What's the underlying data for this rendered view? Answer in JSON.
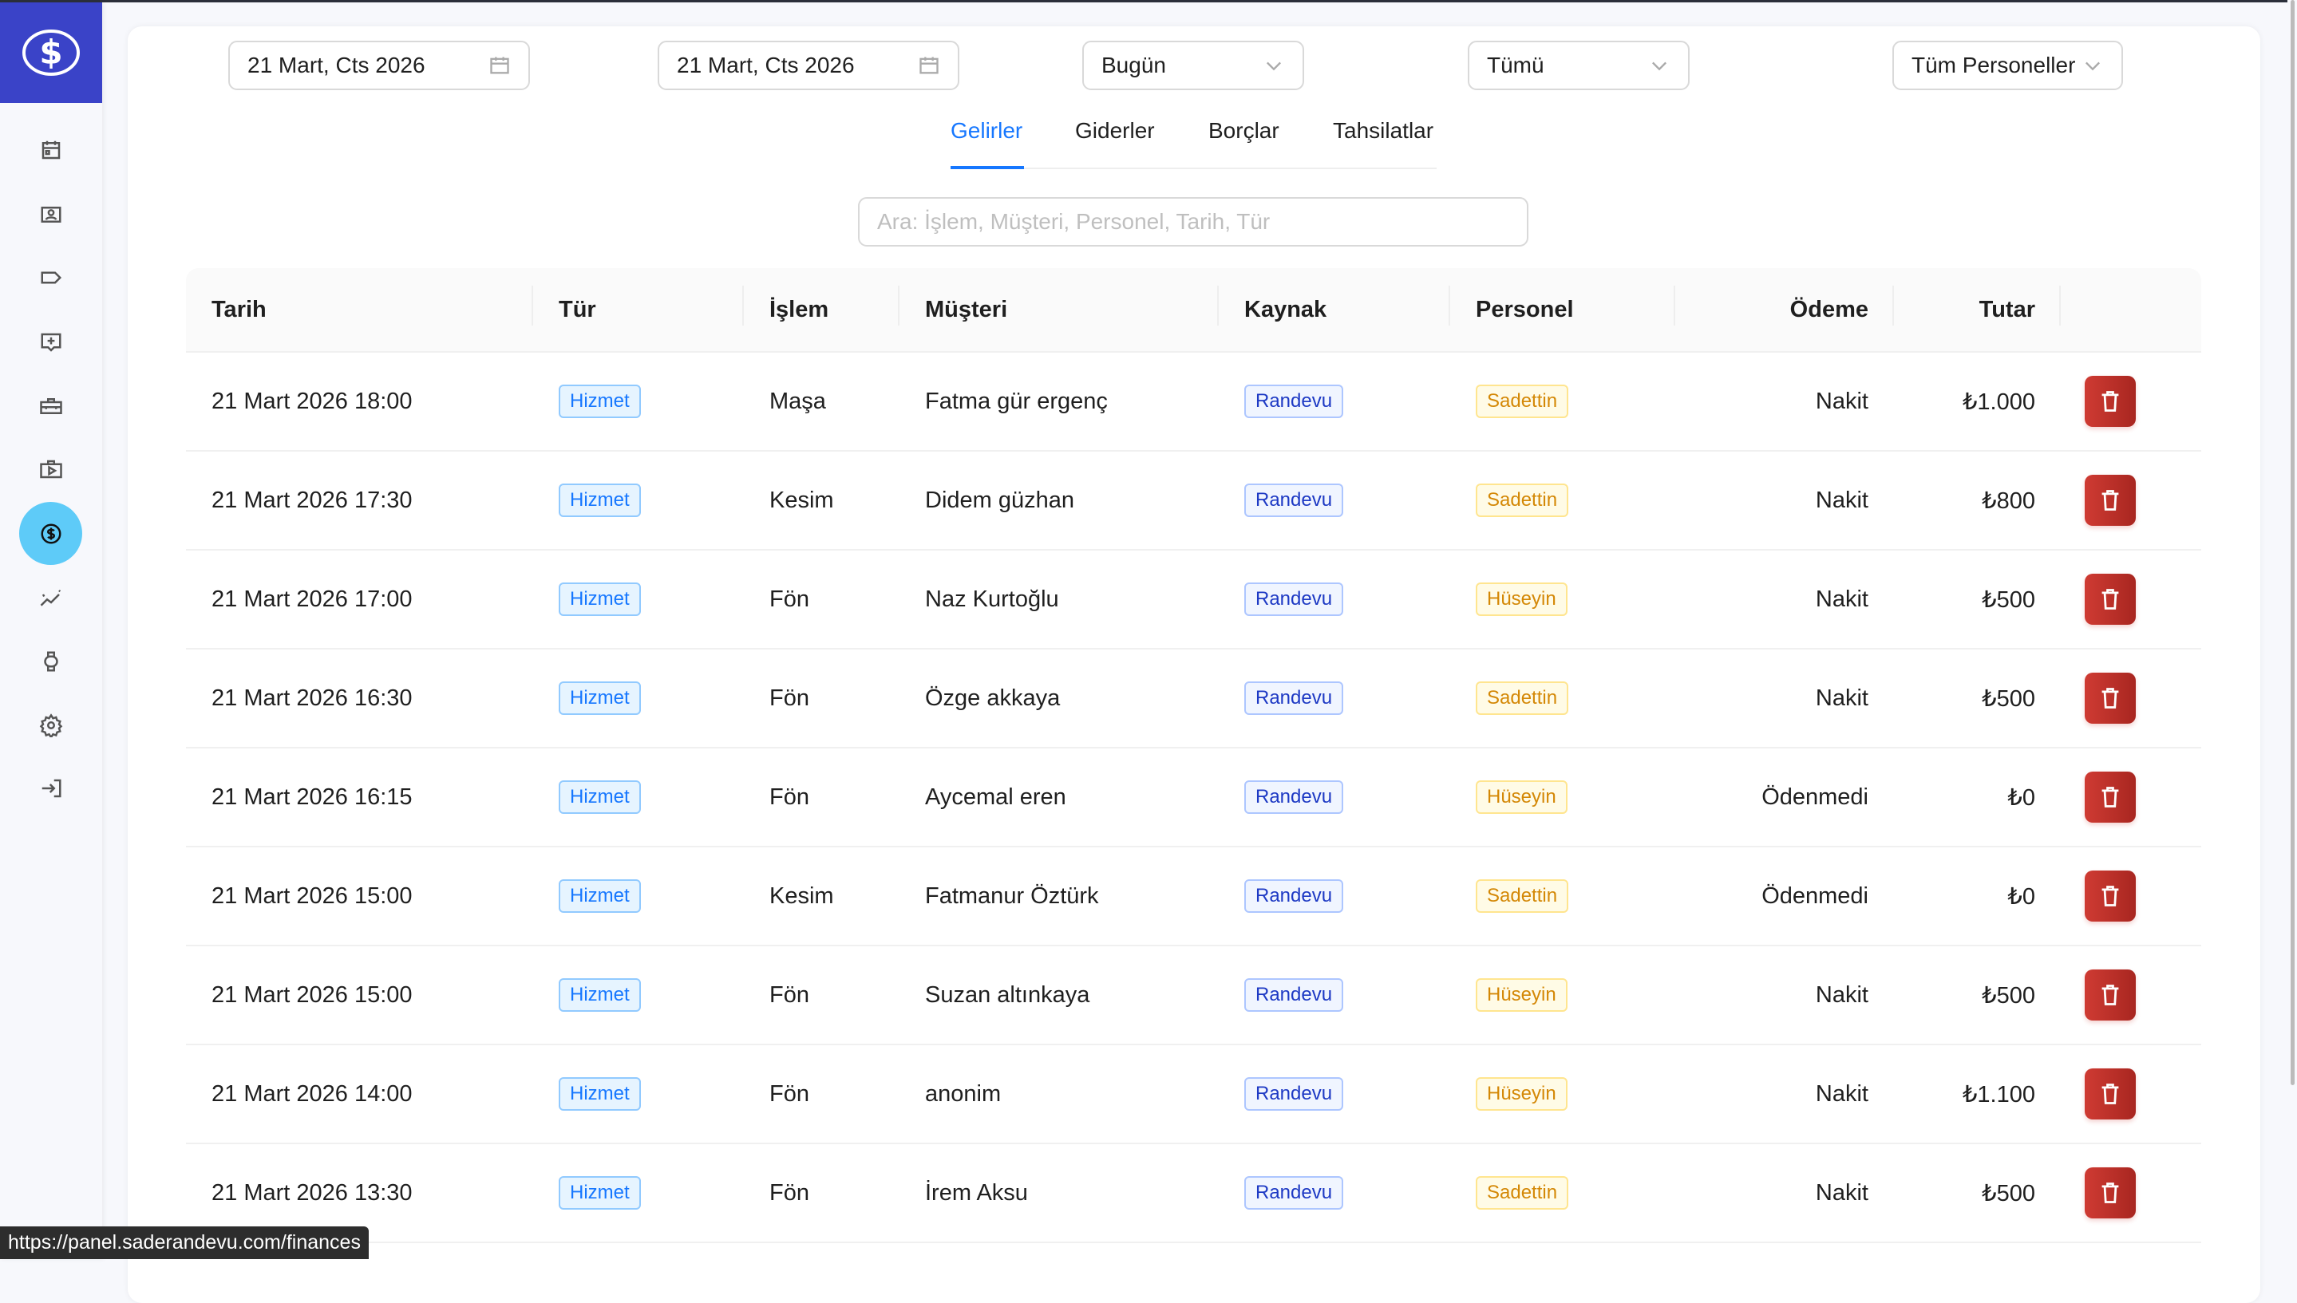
{
  "filters": {
    "start_date": "21 Mart, Cts 2026",
    "end_date": "21 Mart, Cts 2026",
    "period": "Bugün",
    "type": "Tümü",
    "staff": "Tüm Personeller"
  },
  "tabs": [
    "Gelirler",
    "Giderler",
    "Borçlar",
    "Tahsilatlar"
  ],
  "active_tab": "Gelirler",
  "search": {
    "placeholder": "Ara: İşlem, Müşteri, Personel, Tarih, Tür",
    "value": ""
  },
  "table": {
    "headers": [
      "Tarih",
      "Tür",
      "İşlem",
      "Müşteri",
      "Kaynak",
      "Personel",
      "Ödeme",
      "Tutar"
    ],
    "rows": [
      [
        "21 Mart 2026 18:00",
        "Hizmet",
        "Maşa",
        "Fatma gür ergenç",
        "Randevu",
        "Sadettin",
        "Nakit",
        "₺1.000"
      ],
      [
        "21 Mart 2026 17:30",
        "Hizmet",
        "Kesim",
        "Didem güzhan",
        "Randevu",
        "Sadettin",
        "Nakit",
        "₺800"
      ],
      [
        "21 Mart 2026 17:00",
        "Hizmet",
        "Fön",
        "Naz Kurtoğlu",
        "Randevu",
        "Hüseyin",
        "Nakit",
        "₺500"
      ],
      [
        "21 Mart 2026 16:30",
        "Hizmet",
        "Fön",
        "Özge akkaya",
        "Randevu",
        "Sadettin",
        "Nakit",
        "₺500"
      ],
      [
        "21 Mart 2026 16:15",
        "Hizmet",
        "Fön",
        "Aycemal eren",
        "Randevu",
        "Hüseyin",
        "Ödenmedi",
        "₺0"
      ],
      [
        "21 Mart 2026 15:00",
        "Hizmet",
        "Kesim",
        "Fatmanur Öztürk",
        "Randevu",
        "Sadettin",
        "Ödenmedi",
        "₺0"
      ],
      [
        "21 Mart 2026 15:00",
        "Hizmet",
        "Fön",
        "Suzan altınkaya",
        "Randevu",
        "Hüseyin",
        "Nakit",
        "₺500"
      ],
      [
        "21 Mart 2026 14:00",
        "Hizmet",
        "Fön",
        "anonim",
        "Randevu",
        "Hüseyin",
        "Nakit",
        "₺1.100"
      ],
      [
        "21 Mart 2026 13:30",
        "Hizmet",
        "Fön",
        "İrem Aksu",
        "Randevu",
        "Sadettin",
        "Nakit",
        "₺500"
      ]
    ]
  },
  "sidebar": {
    "items": [
      "calendar-icon",
      "contact-card-icon",
      "tag-icon",
      "add-comment-icon",
      "toolbox-icon",
      "media-case-icon",
      "finance-icon",
      "analytics-icon",
      "watch-icon",
      "gear-icon",
      "logout-icon"
    ],
    "active": "finance-icon"
  },
  "status_url": "https://panel.saderandevu.com/finances",
  "colors": {
    "brand": "#3a43c8",
    "active_nav": "#5ecbf8",
    "accent": "#1677ff",
    "delete": "#c0342c"
  }
}
